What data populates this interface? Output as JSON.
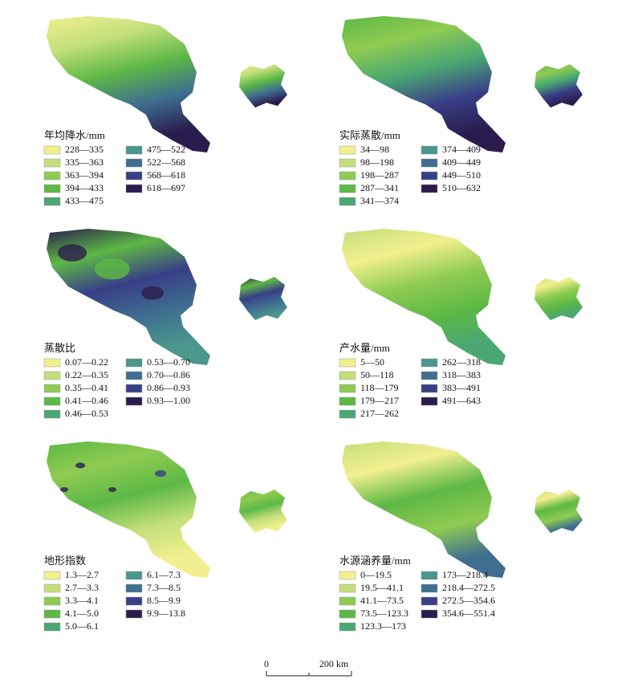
{
  "palette": [
    "#f2ef8f",
    "#c3df7b",
    "#8fcb52",
    "#5db845",
    "#4aa772",
    "#4b968d",
    "#3e6e90",
    "#393f87",
    "#2a1d4d"
  ],
  "panels": [
    {
      "title": "年均降水/mm",
      "legend": [
        "228—335",
        "335—363",
        "363—394",
        "394—433",
        "433—475",
        "475—522",
        "522—568",
        "568—618",
        "618—697"
      ]
    },
    {
      "title": "实际蒸散/mm",
      "legend": [
        "34—98",
        "98—198",
        "198—287",
        "287—341",
        "341—374",
        "374—409",
        "409—449",
        "449—510",
        "510—632"
      ]
    },
    {
      "title": "蒸散比",
      "legend": [
        "0.07—0.22",
        "0.22—0.35",
        "0.35—0.41",
        "0.41—0.46",
        "0.46—0.53",
        "0.53—0.70",
        "0.70—0.86",
        "0.86—0.93",
        "0.93—1.00"
      ]
    },
    {
      "title": "产水量/mm",
      "legend": [
        "5—50",
        "50—118",
        "118—179",
        "179—217",
        "217—262",
        "262—318",
        "318—383",
        "383—491",
        "491—643"
      ]
    },
    {
      "title": "地形指数",
      "legend": [
        "1.3—2.7",
        "2.7—3.3",
        "3.3—4.1",
        "4.1—5.0",
        "5.0—6.1",
        "6.1—7.3",
        "7.3—8.5",
        "8.5—9.9",
        "9.9—13.8"
      ]
    },
    {
      "title": "水源涵养量/mm",
      "legend": [
        "0—19.5",
        "19.5—41.1",
        "41.1—73.5",
        "73.5—123.3",
        "123.3—173",
        "173—218.4",
        "218.4—272.5",
        "272.5—354.6",
        "354.6—551.4"
      ]
    }
  ],
  "scale_bar": {
    "start": "0",
    "end": "200 km"
  }
}
